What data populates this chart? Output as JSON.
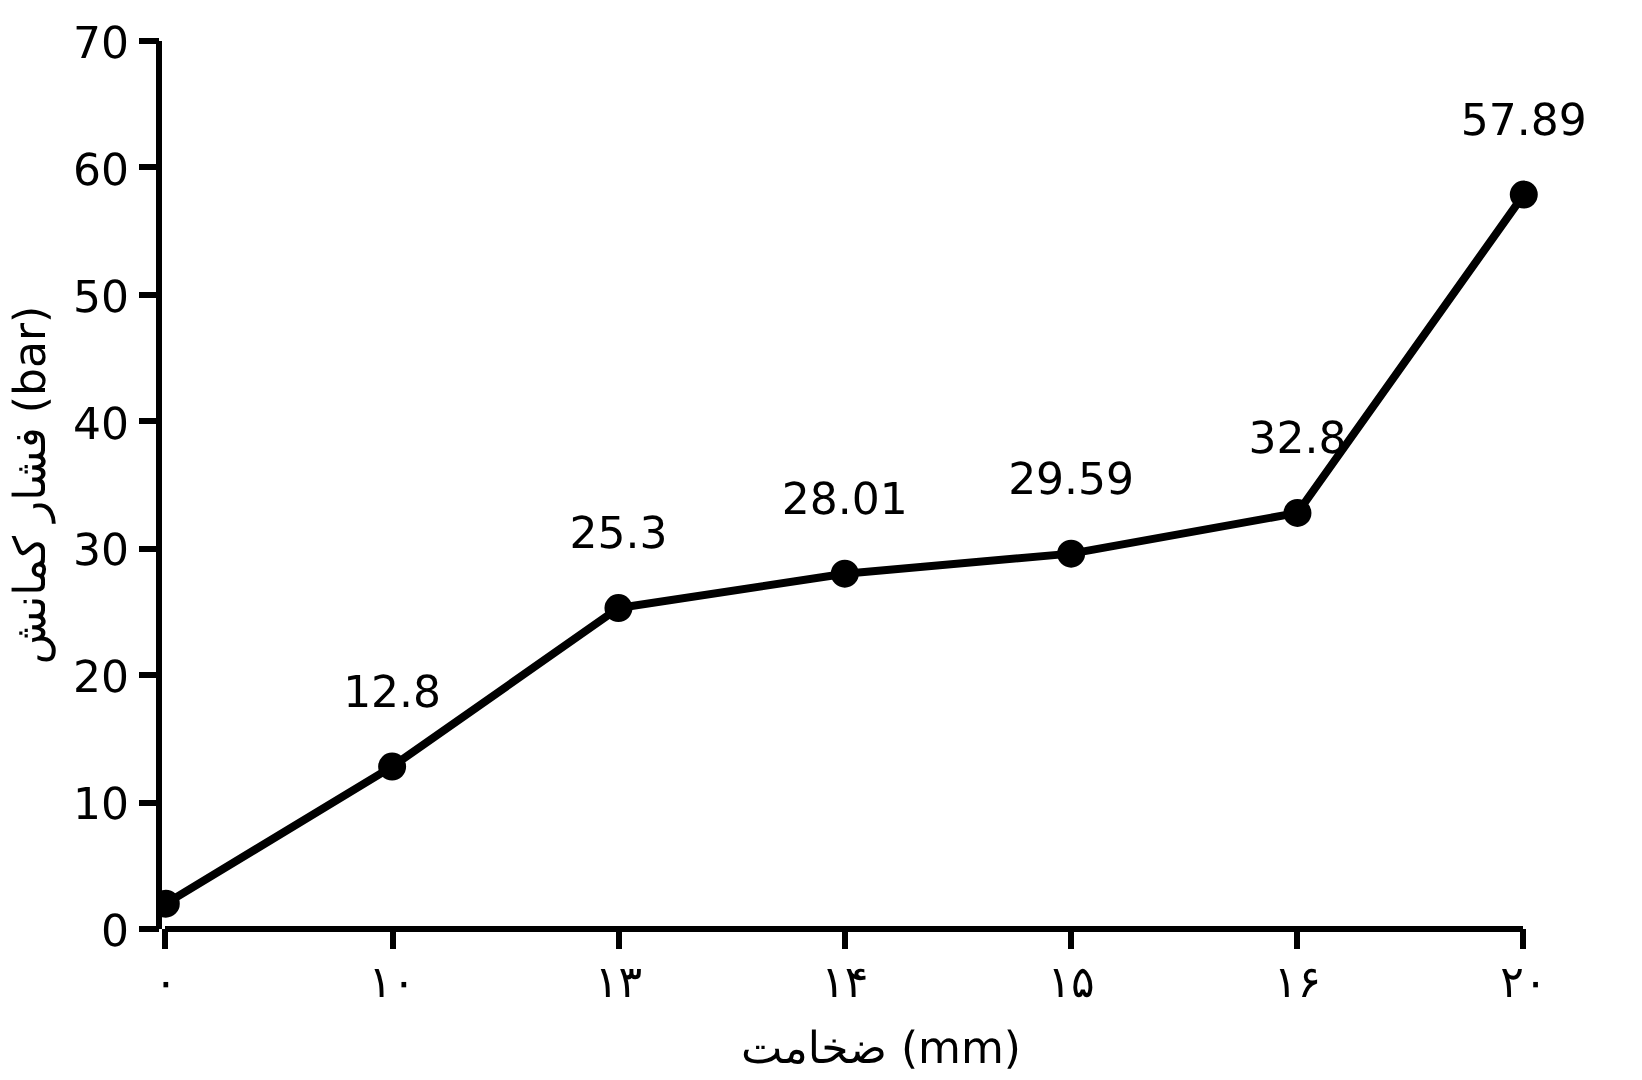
{
  "chart_data": {
    "type": "line",
    "xlabel": "ضخامت (mm)",
    "ylabel": "فشار کمانش (bar)",
    "categories": [
      "۰",
      "۱۰",
      "۱۳",
      "۱۴",
      "۱۵",
      "۱۶",
      "۲۰"
    ],
    "series": [
      {
        "color": "#000000",
        "values": [
          2,
          12.8,
          25.3,
          28.01,
          29.59,
          32.8,
          57.89
        ],
        "value_labels": [
          null,
          "12.8",
          "25.3",
          "28.01",
          "29.59",
          "32.8",
          "57.89"
        ]
      }
    ],
    "ylim": [
      0,
      70
    ],
    "yticks": [
      0,
      10,
      20,
      30,
      40,
      50,
      60,
      70
    ],
    "grid": false,
    "marker": "circle",
    "line_style": "solid"
  }
}
